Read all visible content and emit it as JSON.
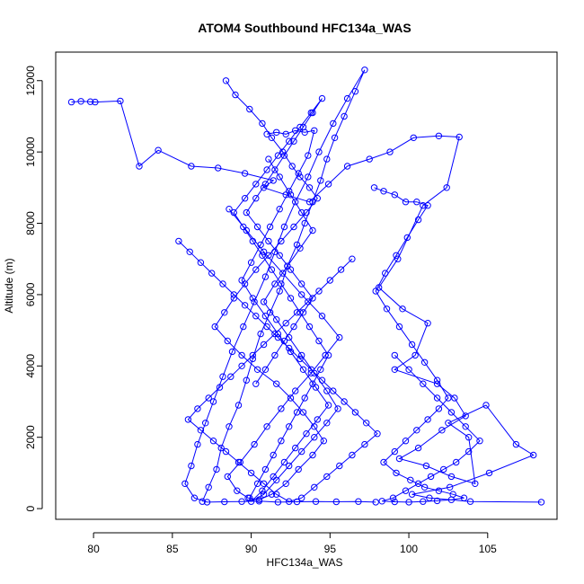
{
  "chart_data": {
    "type": "line",
    "title": "ATOM4 Southbound HFC134a_WAS",
    "xlabel": "HFC134a_WAS",
    "ylabel": "Altitude (m)",
    "xlim": [
      77.6,
      109.4
    ],
    "ylim": [
      -300,
      12800
    ],
    "xticks": [
      80,
      85,
      90,
      95,
      100,
      105
    ],
    "yticks": [
      0,
      2000,
      4000,
      6000,
      8000,
      10000,
      12000
    ],
    "series_color": "#0000ff",
    "markers": "open-circle",
    "series": [
      {
        "x": [
          78.6,
          79.2,
          79.8,
          80.1,
          81.7,
          82.9,
          84.1,
          86.2,
          87.9,
          89.6,
          91.4,
          90.8,
          92.2,
          93.7,
          94.9,
          96.1,
          97.5,
          98.8,
          100.3,
          101.9,
          103.2,
          102.4,
          100.9,
          99.3,
          98.1,
          99.6,
          101.2,
          100.4,
          99.1,
          101.8,
          102.9,
          103.6,
          102.1,
          100.6,
          99.4,
          101.1,
          102.7,
          104.2,
          103.8,
          102.5,
          104.9,
          106.8,
          107.9,
          105.1,
          102.6,
          100.2,
          101.3,
          103.9,
          108.4
        ],
        "y": [
          11400,
          11420,
          11410,
          11400,
          11430,
          9600,
          10050,
          9600,
          9550,
          9400,
          9200,
          9000,
          8800,
          8600,
          9100,
          9600,
          9800,
          10000,
          10400,
          10450,
          10420,
          9000,
          8500,
          7000,
          6200,
          5600,
          5200,
          4300,
          3900,
          3500,
          3100,
          2600,
          2200,
          1700,
          1400,
          1200,
          900,
          700,
          2000,
          2400,
          2900,
          1800,
          1500,
          1000,
          600,
          400,
          300,
          200,
          180
        ]
      },
      {
        "x": [
          86.9,
          87.3,
          87.8,
          88.1,
          88.6,
          89.2,
          89.7,
          90.1,
          90.6,
          91.2,
          91.8,
          92.3,
          92.9,
          93.4,
          93.9,
          94.4,
          94.8,
          95.3,
          95.9,
          96.6,
          97.2,
          96.1,
          95.2,
          94.3,
          93.6,
          92.8,
          92.1,
          91.5,
          90.9,
          90.2,
          89.5,
          88.8,
          88.2,
          87.6,
          87.1,
          86.6,
          86.2,
          85.8,
          86.4,
          87.2,
          88.3,
          89.4,
          90.5,
          91.7,
          92.9,
          94.1,
          95.4,
          96.8,
          97.9
        ],
        "y": [
          200,
          600,
          1100,
          1700,
          2300,
          2900,
          3600,
          4200,
          4900,
          5500,
          6100,
          6800,
          7400,
          8000,
          8600,
          9200,
          9800,
          10400,
          11000,
          11700,
          12300,
          11500,
          10800,
          10000,
          9300,
          8600,
          7900,
          7200,
          6500,
          5800,
          5100,
          4400,
          3700,
          3000,
          2400,
          1800,
          1200,
          700,
          300,
          180,
          190,
          200,
          210,
          180,
          190,
          200,
          190,
          200,
          180
        ]
      },
      {
        "x": [
          88.4,
          89.0,
          89.9,
          90.7,
          91.3,
          92.0,
          92.6,
          93.1,
          93.7,
          94.2,
          93.5,
          92.7,
          91.9,
          91.1,
          90.3,
          89.6,
          88.9,
          88.3,
          87.7,
          88.5,
          89.4,
          90.4,
          91.6,
          92.5,
          93.3,
          94.0,
          94.6,
          93.9,
          93.0,
          92.2,
          91.3,
          90.5,
          89.8,
          89.1,
          88.5,
          89.3,
          90.2,
          91.0,
          91.9,
          92.8,
          93.8,
          94.7,
          95.6,
          94.5,
          93.2,
          92.0,
          90.8,
          89.7,
          88.6
        ],
        "y": [
          12000,
          11600,
          11200,
          10800,
          10400,
          10000,
          9600,
          9300,
          9000,
          8700,
          8300,
          7900,
          7500,
          7100,
          6700,
          6300,
          5900,
          5500,
          5100,
          4700,
          4300,
          3900,
          3500,
          3100,
          2700,
          2300,
          1900,
          1500,
          1100,
          700,
          400,
          250,
          300,
          500,
          900,
          1300,
          1800,
          2300,
          2800,
          3300,
          3800,
          4300,
          4800,
          5400,
          6000,
          6600,
          7200,
          7800,
          8400
        ]
      },
      {
        "x": [
          91.0,
          91.6,
          92.2,
          92.8,
          93.4,
          94.0,
          93.6,
          93.0,
          92.4,
          91.8,
          91.2,
          90.6,
          90.0,
          89.4,
          90.1,
          90.9,
          91.7,
          92.5,
          93.3,
          94.1,
          94.9,
          94.2,
          93.5,
          92.8,
          92.1,
          91.4,
          90.7,
          90.0,
          90.8,
          91.6,
          92.4,
          93.2,
          94.0,
          94.8,
          95.5,
          94.8,
          94.0,
          93.2,
          92.4,
          91.6,
          90.8,
          91.5,
          92.3,
          93.1,
          93.9,
          93.2,
          92.5,
          91.8,
          91.1
        ],
        "y": [
          10500,
          10550,
          10500,
          10600,
          10550,
          10600,
          9900,
          9400,
          8900,
          8400,
          7900,
          7400,
          6900,
          6400,
          5900,
          5400,
          4900,
          4400,
          3900,
          3400,
          2900,
          2500,
          2100,
          1700,
          1300,
          900,
          500,
          200,
          400,
          800,
          1200,
          1600,
          2000,
          2400,
          2800,
          3300,
          3800,
          4300,
          4800,
          5300,
          5800,
          6300,
          6800,
          7300,
          7800,
          8300,
          8800,
          9300,
          9800
        ]
      },
      {
        "x": [
          97.8,
          98.4,
          99.1,
          99.8,
          100.5,
          101.2,
          100.6,
          99.9,
          99.2,
          98.5,
          97.9,
          98.6,
          99.4,
          100.2,
          101.0,
          101.8,
          102.5,
          101.9,
          101.2,
          100.5,
          99.8,
          99.1,
          98.4,
          99.2,
          100.1,
          101.0,
          101.9,
          102.8,
          103.5,
          102.7,
          101.8,
          100.9,
          100.0,
          99.1,
          98.3,
          99.0,
          99.8,
          100.6,
          101.4,
          102.2,
          103.0,
          103.8,
          104.5,
          103.6,
          102.7,
          101.8,
          100.9,
          100.0,
          99.1
        ],
        "y": [
          9000,
          8900,
          8800,
          8600,
          8600,
          8500,
          8100,
          7600,
          7100,
          6600,
          6100,
          5600,
          5100,
          4600,
          4100,
          3600,
          3100,
          2800,
          2500,
          2200,
          1900,
          1600,
          1300,
          1000,
          800,
          600,
          500,
          400,
          300,
          250,
          220,
          200,
          180,
          190,
          210,
          300,
          500,
          700,
          900,
          1100,
          1300,
          1600,
          1900,
          2300,
          2700,
          3100,
          3500,
          3900,
          4300
        ]
      },
      {
        "x": [
          85.4,
          86.1,
          86.8,
          87.5,
          88.2,
          88.9,
          89.6,
          90.3,
          91.0,
          91.7,
          92.4,
          93.1,
          93.8,
          94.5,
          95.2,
          95.9,
          96.6,
          97.3,
          98.0,
          97.2,
          96.4,
          95.6,
          94.8,
          94.0,
          93.2,
          92.4,
          91.6,
          90.8,
          90.0,
          89.2,
          88.4,
          87.6,
          86.8,
          86.0,
          86.6,
          87.3,
          88.0,
          88.7,
          89.4,
          90.1,
          90.8,
          91.5,
          92.2,
          92.9,
          93.6,
          94.3,
          95.0,
          95.7,
          96.4
        ],
        "y": [
          7500,
          7200,
          6900,
          6600,
          6300,
          6000,
          5700,
          5400,
          5100,
          4800,
          4500,
          4200,
          3900,
          3600,
          3300,
          3000,
          2700,
          2400,
          2100,
          1800,
          1500,
          1200,
          900,
          600,
          300,
          200,
          400,
          700,
          1000,
          1300,
          1600,
          1900,
          2200,
          2500,
          2800,
          3100,
          3400,
          3700,
          4000,
          4300,
          4600,
          4900,
          5200,
          5500,
          5800,
          6100,
          6400,
          6700,
          7000
        ]
      },
      {
        "x": [
          89.9,
          90.4,
          90.9,
          91.4,
          91.9,
          92.4,
          92.9,
          93.4,
          93.9,
          94.4,
          94.9,
          94.3,
          93.7,
          93.1,
          92.5,
          91.9,
          91.3,
          90.7,
          90.1,
          89.5,
          88.9,
          89.6,
          90.3,
          91.0,
          91.7,
          92.4,
          93.1,
          93.8,
          94.5,
          93.9,
          93.3,
          92.7,
          92.1,
          91.5,
          90.9,
          90.3,
          89.7,
          90.4,
          91.1,
          91.8,
          92.5,
          93.2,
          93.9,
          93.3,
          92.7,
          92.1,
          91.5,
          90.9,
          90.3
        ],
        "y": [
          300,
          700,
          1100,
          1500,
          1900,
          2300,
          2700,
          3100,
          3500,
          3900,
          4300,
          4700,
          5100,
          5500,
          5900,
          6300,
          6700,
          7100,
          7500,
          7900,
          8300,
          8700,
          9100,
          9500,
          9900,
          10300,
          10700,
          11100,
          11500,
          11100,
          10700,
          10300,
          9900,
          9500,
          9100,
          8700,
          8300,
          7900,
          7500,
          7100,
          6700,
          6300,
          5900,
          5500,
          5100,
          4700,
          4300,
          3900,
          3500
        ]
      }
    ]
  }
}
